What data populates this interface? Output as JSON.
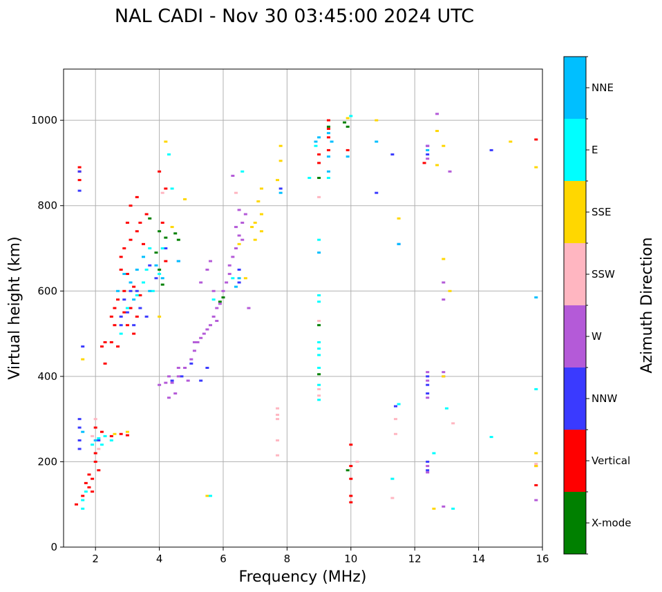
{
  "chart_data": {
    "type": "scatter",
    "title": "NAL CADI - Nov 30 03:45:00 2024 UTC",
    "xlabel": "Frequency (MHz)",
    "ylabel": "Virtual height (km)",
    "xlim": [
      1.0,
      16.0
    ],
    "ylim": [
      0,
      1120
    ],
    "xticks": [
      2,
      4,
      6,
      8,
      10,
      12,
      14,
      16
    ],
    "yticks": [
      0,
      200,
      400,
      600,
      800,
      1000
    ],
    "grid": true,
    "colorbar": {
      "title": "Azimuth Direction",
      "categories": [
        {
          "label": "X-mode",
          "color": "#008000"
        },
        {
          "label": "Vertical",
          "color": "#ff0000"
        },
        {
          "label": "NNW",
          "color": "#3a3aff"
        },
        {
          "label": "W",
          "color": "#b45ad8"
        },
        {
          "label": "SSW",
          "color": "#ffb6c1"
        },
        {
          "label": "SSE",
          "color": "#ffd700"
        },
        {
          "label": "E",
          "color": "#00ffff"
        },
        {
          "label": "NNE",
          "color": "#00bfff"
        }
      ]
    },
    "series": [
      {
        "name": "X-mode",
        "points": [
          [
            9.9,
            985
          ],
          [
            9.8,
            995
          ],
          [
            9.3,
            985
          ],
          [
            9.0,
            865
          ],
          [
            6.0,
            585
          ],
          [
            5.9,
            575
          ],
          [
            4.0,
            740
          ],
          [
            4.0,
            650
          ],
          [
            3.7,
            770
          ],
          [
            4.5,
            735
          ],
          [
            4.1,
            615
          ],
          [
            4.6,
            720
          ],
          [
            9.0,
            405
          ],
          [
            9.0,
            520
          ],
          [
            9.9,
            180
          ],
          [
            4.2,
            725
          ],
          [
            3.9,
            690
          ]
        ]
      },
      {
        "name": "Vertical",
        "points": [
          [
            3.3,
            820
          ],
          [
            3.1,
            800
          ],
          [
            3.0,
            760
          ],
          [
            3.3,
            740
          ],
          [
            3.1,
            720
          ],
          [
            2.8,
            680
          ],
          [
            2.8,
            650
          ],
          [
            2.9,
            600
          ],
          [
            2.7,
            580
          ],
          [
            2.6,
            560
          ],
          [
            2.5,
            540
          ],
          [
            3.0,
            520
          ],
          [
            3.2,
            500
          ],
          [
            2.5,
            480
          ],
          [
            2.7,
            470
          ],
          [
            2.3,
            480
          ],
          [
            2.2,
            470
          ],
          [
            3.5,
            710
          ],
          [
            3.4,
            760
          ],
          [
            3.6,
            780
          ],
          [
            3.0,
            640
          ],
          [
            3.2,
            610
          ],
          [
            3.4,
            590
          ],
          [
            3.1,
            560
          ],
          [
            2.9,
            550
          ],
          [
            3.3,
            540
          ],
          [
            1.5,
            890
          ],
          [
            1.5,
            880
          ],
          [
            1.5,
            860
          ],
          [
            1.4,
            100
          ],
          [
            1.6,
            120
          ],
          [
            1.8,
            140
          ],
          [
            1.9,
            160
          ],
          [
            1.7,
            150
          ],
          [
            2.0,
            200
          ],
          [
            2.1,
            180
          ],
          [
            2.0,
            220
          ],
          [
            1.9,
            130
          ],
          [
            1.8,
            170
          ],
          [
            2.0,
            280
          ],
          [
            2.2,
            270
          ],
          [
            2.5,
            260
          ],
          [
            2.8,
            265
          ],
          [
            3.0,
            262
          ],
          [
            9.3,
            1000
          ],
          [
            9.3,
            960
          ],
          [
            9.3,
            930
          ],
          [
            9.0,
            900
          ],
          [
            9.3,
            980
          ],
          [
            10.0,
            240
          ],
          [
            10.0,
            190
          ],
          [
            10.0,
            160
          ],
          [
            10.0,
            120
          ],
          [
            10.0,
            105
          ],
          [
            15.8,
            955
          ],
          [
            15.8,
            145
          ],
          [
            12.3,
            900
          ],
          [
            4.0,
            880
          ],
          [
            4.2,
            840
          ],
          [
            2.3,
            430
          ],
          [
            9.0,
            920
          ],
          [
            9.9,
            930
          ],
          [
            4.2,
            670
          ],
          [
            4.1,
            760
          ],
          [
            2.9,
            700
          ],
          [
            2.6,
            520
          ]
        ]
      },
      {
        "name": "NNW",
        "points": [
          [
            1.5,
            880
          ],
          [
            1.5,
            835
          ],
          [
            1.5,
            300
          ],
          [
            1.5,
            280
          ],
          [
            1.5,
            250
          ],
          [
            1.5,
            230
          ],
          [
            1.6,
            470
          ],
          [
            2.8,
            540
          ],
          [
            3.0,
            550
          ],
          [
            3.2,
            520
          ],
          [
            3.1,
            600
          ],
          [
            2.9,
            580
          ],
          [
            3.3,
            600
          ],
          [
            3.4,
            560
          ],
          [
            3.6,
            540
          ],
          [
            4.2,
            700
          ],
          [
            3.9,
            630
          ],
          [
            3.7,
            660
          ],
          [
            4.4,
            390
          ],
          [
            4.7,
            400
          ],
          [
            5.0,
            430
          ],
          [
            5.5,
            420
          ],
          [
            5.3,
            390
          ],
          [
            6.5,
            620
          ],
          [
            6.5,
            650
          ],
          [
            11.5,
            710
          ],
          [
            10.8,
            830
          ],
          [
            7.8,
            840
          ],
          [
            12.4,
            400
          ],
          [
            12.4,
            380
          ],
          [
            12.4,
            360
          ],
          [
            11.3,
            920
          ],
          [
            11.4,
            330
          ],
          [
            14.4,
            930
          ],
          [
            12.4,
            940
          ],
          [
            12.4,
            920
          ],
          [
            12.4,
            180
          ],
          [
            12.4,
            200
          ],
          [
            2.8,
            520
          ],
          [
            4.6,
            670
          ],
          [
            2.1,
            250
          ]
        ]
      },
      {
        "name": "W",
        "points": [
          [
            4.0,
            380
          ],
          [
            4.3,
            350
          ],
          [
            4.5,
            360
          ],
          [
            4.4,
            385
          ],
          [
            4.6,
            400
          ],
          [
            4.8,
            420
          ],
          [
            4.9,
            390
          ],
          [
            5.0,
            440
          ],
          [
            5.1,
            460
          ],
          [
            5.2,
            480
          ],
          [
            5.3,
            490
          ],
          [
            5.4,
            500
          ],
          [
            5.5,
            510
          ],
          [
            5.6,
            520
          ],
          [
            5.7,
            540
          ],
          [
            5.8,
            560
          ],
          [
            5.9,
            570
          ],
          [
            6.0,
            600
          ],
          [
            6.1,
            620
          ],
          [
            6.2,
            640
          ],
          [
            6.2,
            660
          ],
          [
            6.3,
            680
          ],
          [
            6.4,
            700
          ],
          [
            6.5,
            730
          ],
          [
            6.6,
            760
          ],
          [
            6.7,
            780
          ],
          [
            6.5,
            790
          ],
          [
            5.5,
            650
          ],
          [
            5.6,
            670
          ],
          [
            5.3,
            620
          ],
          [
            5.7,
            600
          ],
          [
            4.3,
            400
          ],
          [
            4.6,
            420
          ],
          [
            4.2,
            385
          ],
          [
            6.6,
            720
          ],
          [
            6.4,
            750
          ],
          [
            6.8,
            560
          ],
          [
            5.8,
            530
          ],
          [
            5.1,
            480
          ],
          [
            12.4,
            410
          ],
          [
            12.4,
            390
          ],
          [
            12.4,
            350
          ],
          [
            12.4,
            190
          ],
          [
            12.4,
            175
          ],
          [
            12.4,
            940
          ],
          [
            12.4,
            910
          ],
          [
            12.9,
            620
          ],
          [
            12.9,
            580
          ],
          [
            12.9,
            410
          ],
          [
            12.9,
            400
          ],
          [
            13.1,
            880
          ],
          [
            12.7,
            1015
          ],
          [
            15.8,
            110
          ],
          [
            15.8,
            190
          ],
          [
            12.9,
            95
          ],
          [
            6.3,
            870
          ]
        ]
      },
      {
        "name": "SSW",
        "points": [
          [
            7.7,
            325
          ],
          [
            7.7,
            310
          ],
          [
            7.7,
            300
          ],
          [
            7.7,
            250
          ],
          [
            7.7,
            215
          ],
          [
            9.0,
            370
          ],
          [
            9.0,
            355
          ],
          [
            9.0,
            530
          ],
          [
            11.4,
            300
          ],
          [
            11.4,
            265
          ],
          [
            11.3,
            160
          ],
          [
            11.3,
            115
          ],
          [
            13.2,
            290
          ],
          [
            15.8,
            195
          ],
          [
            6.4,
            830
          ],
          [
            10.2,
            200
          ],
          [
            2.0,
            300
          ],
          [
            1.9,
            260
          ],
          [
            9.0,
            820
          ],
          [
            4.1,
            830
          ],
          [
            2.1,
            230
          ]
        ]
      },
      {
        "name": "SSE",
        "points": [
          [
            7.2,
            840
          ],
          [
            7.1,
            810
          ],
          [
            7.2,
            780
          ],
          [
            7.0,
            760
          ],
          [
            6.9,
            750
          ],
          [
            7.0,
            720
          ],
          [
            7.2,
            740
          ],
          [
            7.8,
            940
          ],
          [
            7.8,
            905
          ],
          [
            7.7,
            860
          ],
          [
            6.5,
            710
          ],
          [
            6.7,
            630
          ],
          [
            10.8,
            1000
          ],
          [
            12.7,
            975
          ],
          [
            12.9,
            940
          ],
          [
            12.7,
            895
          ],
          [
            12.9,
            675
          ],
          [
            13.1,
            600
          ],
          [
            12.9,
            400
          ],
          [
            12.6,
            90
          ],
          [
            15.8,
            890
          ],
          [
            15.0,
            950
          ],
          [
            15.8,
            220
          ],
          [
            15.8,
            190
          ],
          [
            4.2,
            950
          ],
          [
            4.8,
            815
          ],
          [
            11.5,
            770
          ],
          [
            2.6,
            265
          ],
          [
            3.0,
            270
          ],
          [
            1.6,
            440
          ],
          [
            5.5,
            120
          ],
          [
            4.0,
            540
          ],
          [
            4.4,
            750
          ],
          [
            9.9,
            1005
          ]
        ]
      },
      {
        "name": "E",
        "points": [
          [
            9.0,
            720
          ],
          [
            9.0,
            590
          ],
          [
            9.0,
            575
          ],
          [
            9.0,
            480
          ],
          [
            9.0,
            465
          ],
          [
            9.0,
            450
          ],
          [
            9.0,
            420
          ],
          [
            9.0,
            380
          ],
          [
            9.0,
            345
          ],
          [
            10.0,
            1010
          ],
          [
            9.3,
            865
          ],
          [
            8.9,
            940
          ],
          [
            8.7,
            865
          ],
          [
            15.8,
            370
          ],
          [
            14.4,
            258
          ],
          [
            13.0,
            325
          ],
          [
            12.6,
            220
          ],
          [
            13.2,
            90
          ],
          [
            11.5,
            335
          ],
          [
            5.6,
            120
          ],
          [
            2.1,
            255
          ],
          [
            2.3,
            260
          ],
          [
            2.5,
            250
          ],
          [
            2.2,
            240
          ],
          [
            1.9,
            240
          ],
          [
            1.6,
            110
          ],
          [
            1.6,
            90
          ],
          [
            1.7,
            130
          ],
          [
            3.5,
            620
          ],
          [
            3.7,
            700
          ],
          [
            3.6,
            650
          ],
          [
            4.0,
            640
          ],
          [
            3.8,
            600
          ],
          [
            4.1,
            700
          ],
          [
            4.3,
            920
          ],
          [
            4.4,
            840
          ],
          [
            6.6,
            880
          ],
          [
            6.3,
            630
          ],
          [
            5.7,
            580
          ],
          [
            3.3,
            590
          ],
          [
            3.0,
            560
          ],
          [
            2.8,
            500
          ],
          [
            11.3,
            160
          ]
        ]
      },
      {
        "name": "NNE",
        "points": [
          [
            9.0,
            960
          ],
          [
            8.9,
            950
          ],
          [
            9.4,
            950
          ],
          [
            9.3,
            970
          ],
          [
            9.3,
            915
          ],
          [
            9.3,
            880
          ],
          [
            9.9,
            915
          ],
          [
            10.8,
            950
          ],
          [
            12.4,
            930
          ],
          [
            11.5,
            710
          ],
          [
            6.5,
            630
          ],
          [
            6.4,
            610
          ],
          [
            3.9,
            660
          ],
          [
            4.1,
            630
          ],
          [
            3.7,
            600
          ],
          [
            3.5,
            680
          ],
          [
            3.3,
            650
          ],
          [
            3.1,
            620
          ],
          [
            2.9,
            640
          ],
          [
            2.7,
            600
          ],
          [
            3.2,
            580
          ],
          [
            4.6,
            670
          ],
          [
            7.8,
            830
          ],
          [
            9.0,
            690
          ],
          [
            15.8,
            585
          ],
          [
            1.6,
            270
          ],
          [
            2.0,
            250
          ]
        ]
      }
    ]
  }
}
